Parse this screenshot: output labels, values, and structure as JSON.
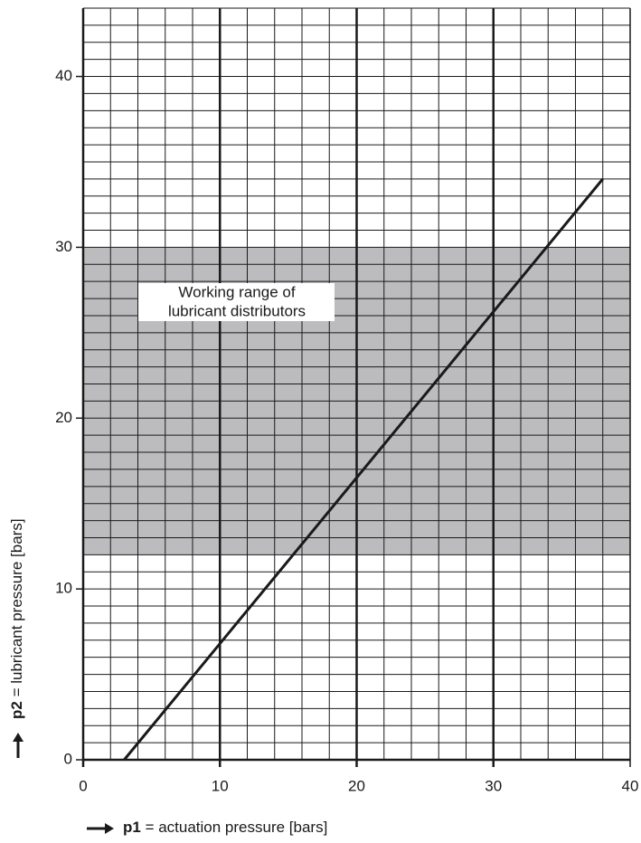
{
  "chart_data": {
    "type": "line",
    "x_label_symbol": "p1",
    "x_label_text": " = actuation pressure [bars]",
    "y_label_symbol": "p2",
    "y_label_text": " = lubricant pressure [bars]",
    "annotation": [
      "Working range of",
      "lubricant distributors"
    ],
    "band": [
      12,
      30
    ],
    "band_color": "#bcbcbe",
    "series": [
      {
        "x": [
          3,
          38
        ],
        "values": [
          0,
          34
        ],
        "color": "#1a1a1a"
      }
    ],
    "xlim": [
      0,
      40
    ],
    "ylim": [
      0,
      44
    ],
    "xticks": [
      0,
      10,
      20,
      30,
      40
    ],
    "yticks": [
      0,
      10,
      20,
      30,
      40
    ],
    "xminor": [
      0,
      2,
      4,
      6,
      8,
      10,
      12,
      14,
      16,
      18,
      20,
      22,
      24,
      26,
      28,
      30,
      32,
      34,
      36,
      38,
      40
    ],
    "yminor": [
      0,
      1,
      2,
      3,
      4,
      5,
      6,
      7,
      8,
      9,
      10,
      11,
      12,
      13,
      14,
      15,
      16,
      17,
      18,
      19,
      20,
      21,
      22,
      23,
      24,
      25,
      26,
      27,
      28,
      29,
      30,
      31,
      32,
      33,
      34,
      35,
      36,
      37,
      38,
      39,
      40,
      41,
      42,
      43,
      44
    ],
    "grid": true
  }
}
